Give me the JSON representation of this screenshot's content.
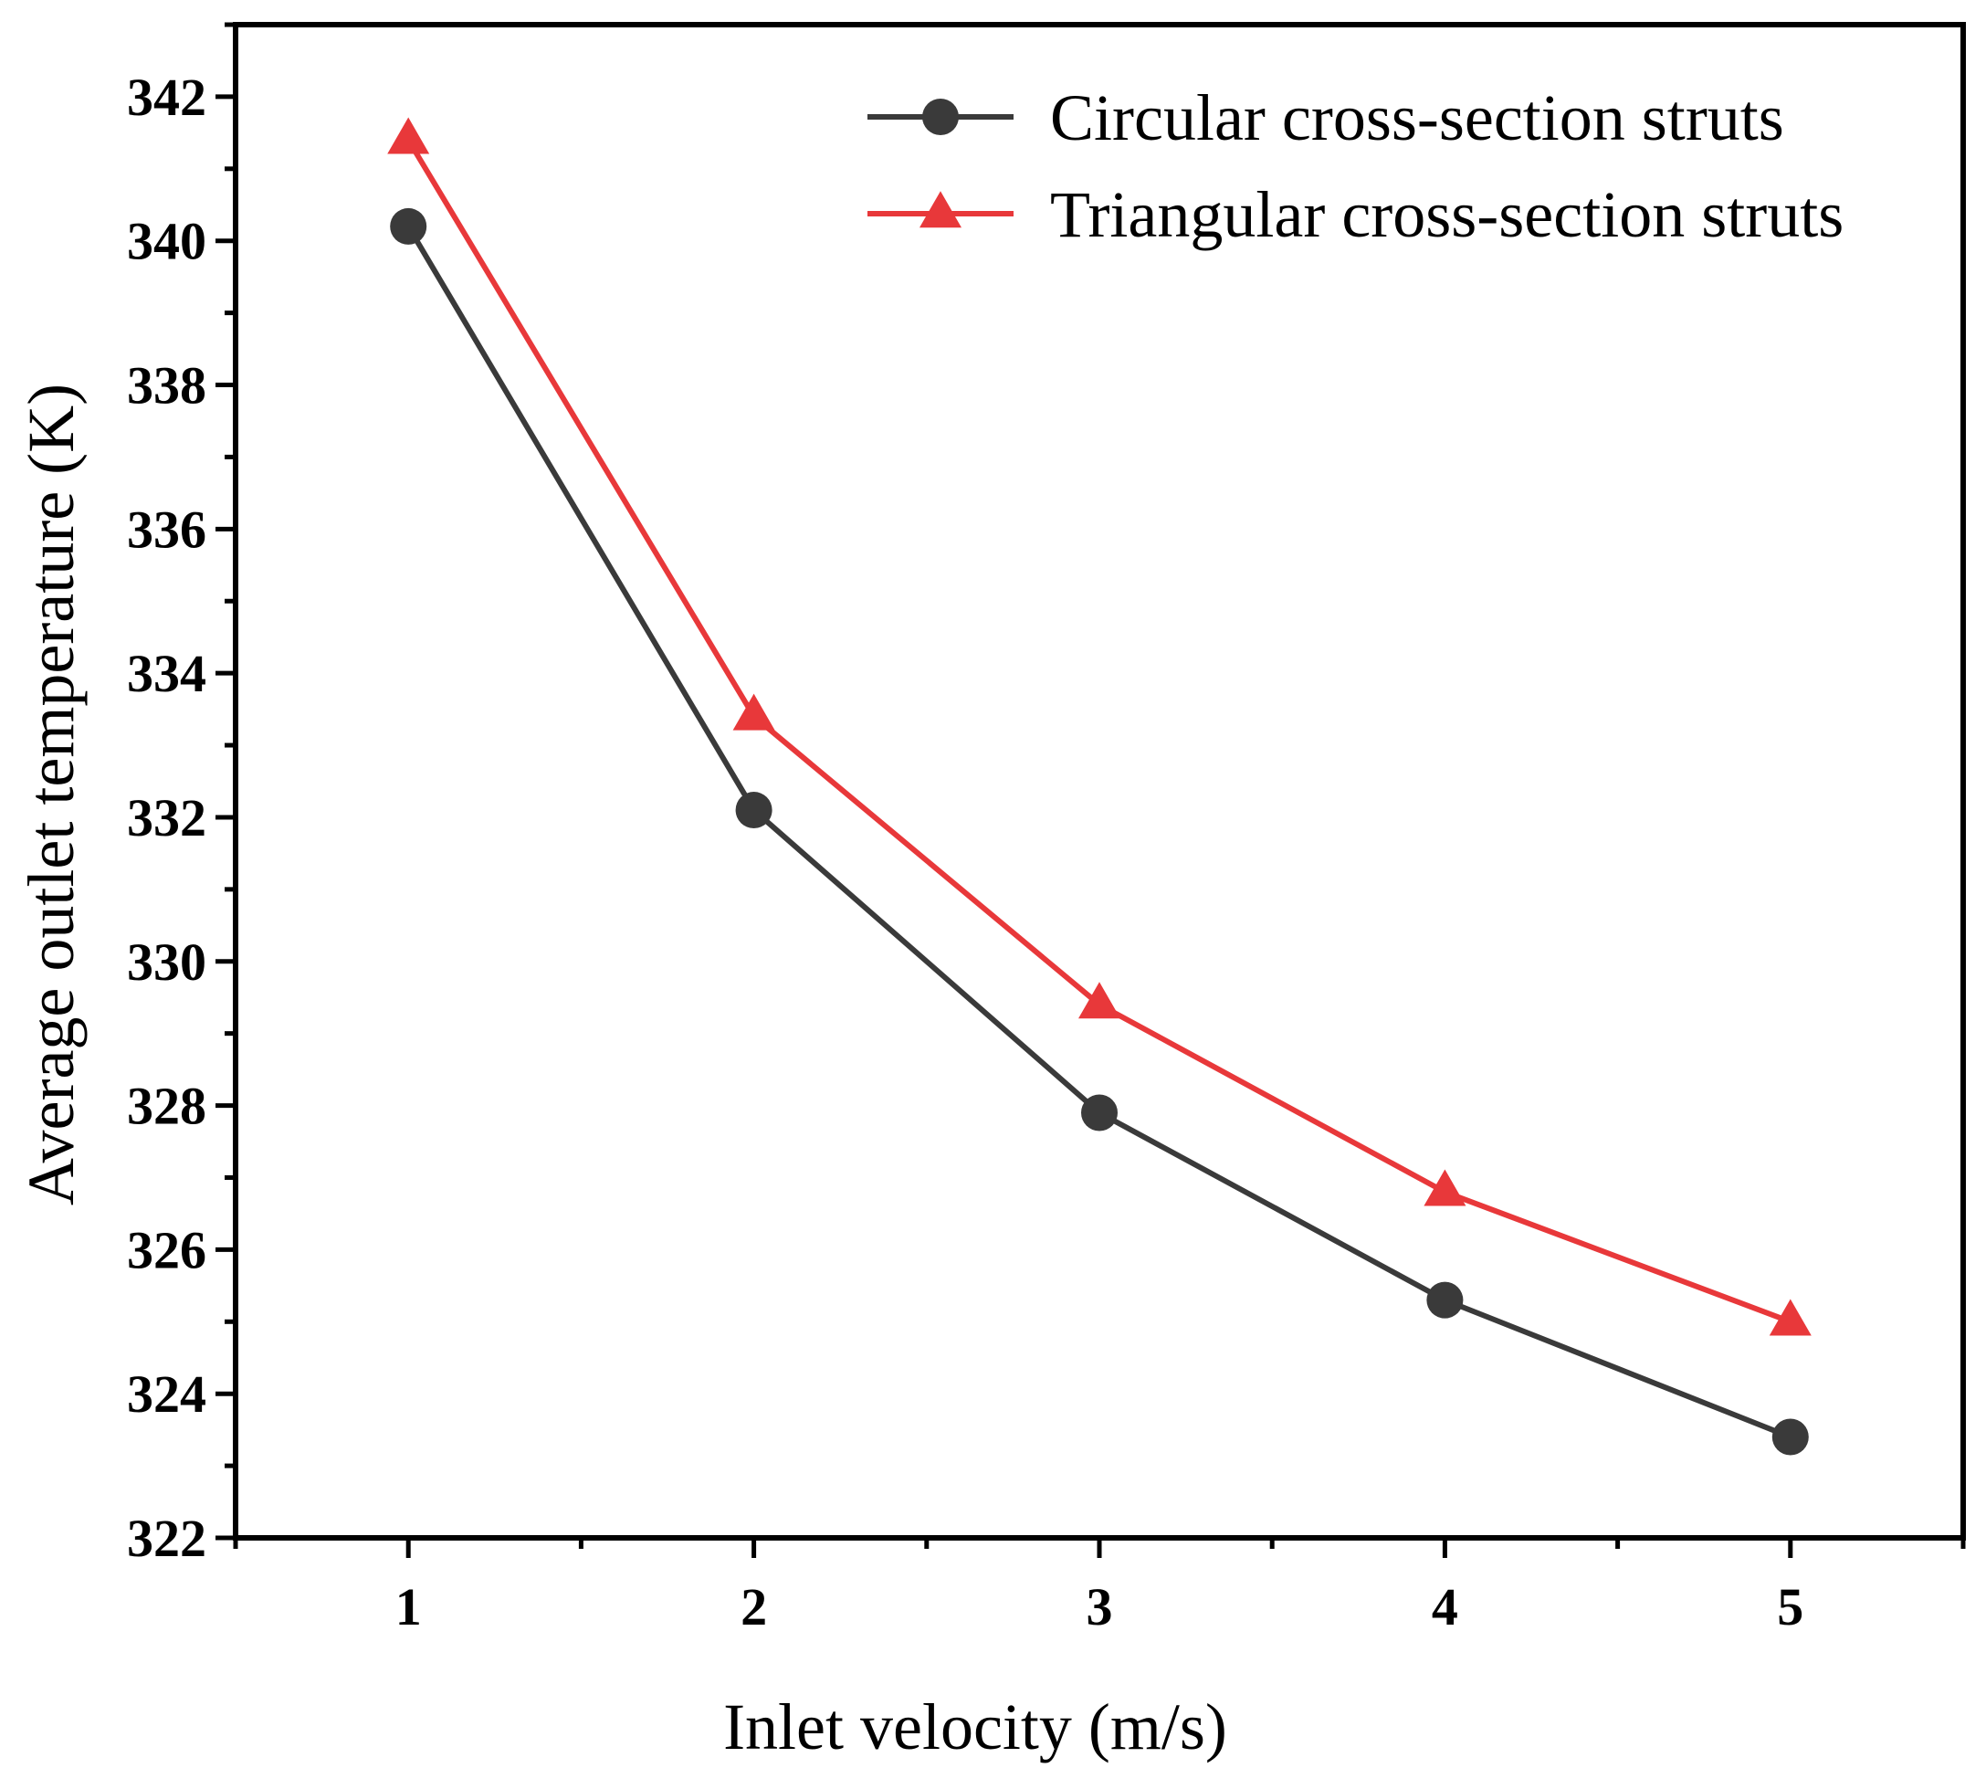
{
  "chart_data": {
    "type": "line",
    "title": "",
    "xlabel": "Inlet velocity (m/s)",
    "ylabel": "Average outlet temperature (K)",
    "x": [
      1,
      2,
      3,
      4,
      5
    ],
    "xticks": [
      "1",
      "2",
      "3",
      "4",
      "5"
    ],
    "xlim": [
      0.5,
      5.5
    ],
    "ylim": [
      322,
      343
    ],
    "yticks": [
      "322",
      "324",
      "326",
      "328",
      "330",
      "332",
      "334",
      "336",
      "338",
      "340",
      "342"
    ],
    "grid": false,
    "legend_position": "top-right",
    "series": [
      {
        "name": "Circular cross-section struts",
        "marker": "circle",
        "color": "#3a3a3a",
        "values": [
          340.2,
          332.1,
          327.9,
          325.3,
          323.4
        ]
      },
      {
        "name": "Triangular cross-section struts",
        "marker": "triangle",
        "color": "#e8383a",
        "values": [
          341.4,
          333.4,
          329.4,
          326.8,
          325.0
        ]
      }
    ]
  }
}
